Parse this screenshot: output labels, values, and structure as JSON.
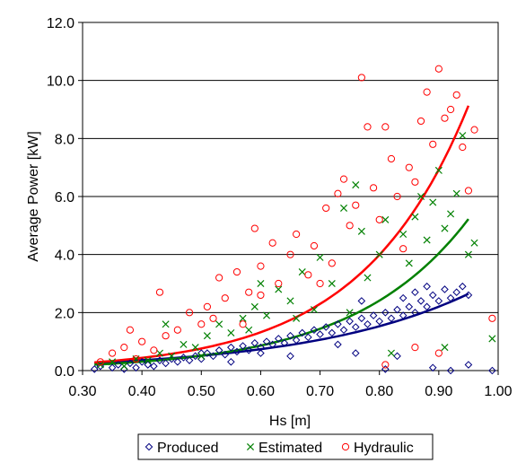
{
  "chart_data": {
    "type": "scatter",
    "title": "",
    "xlabel": "Hs [m]",
    "ylabel": "Average Power [kW]",
    "xlim": [
      0.3,
      1.0
    ],
    "ylim": [
      0.0,
      12.0
    ],
    "x_ticks": [
      "0.30",
      "0.40",
      "0.50",
      "0.60",
      "0.70",
      "0.80",
      "0.90",
      "1.00"
    ],
    "y_ticks": [
      "0.0",
      "2.0",
      "4.0",
      "6.0",
      "8.0",
      "10.0",
      "12.0"
    ],
    "grid": "horizontal",
    "legend_position": "bottom",
    "series": [
      {
        "name": "Produced",
        "marker": "diamond",
        "color": "#000080",
        "points": [
          [
            0.32,
            0.05
          ],
          [
            0.33,
            0.15
          ],
          [
            0.35,
            0.1
          ],
          [
            0.36,
            0.2
          ],
          [
            0.37,
            0.05
          ],
          [
            0.38,
            0.25
          ],
          [
            0.39,
            0.1
          ],
          [
            0.4,
            0.3
          ],
          [
            0.41,
            0.2
          ],
          [
            0.42,
            0.15
          ],
          [
            0.43,
            0.35
          ],
          [
            0.44,
            0.25
          ],
          [
            0.45,
            0.4
          ],
          [
            0.46,
            0.3
          ],
          [
            0.47,
            0.45
          ],
          [
            0.48,
            0.35
          ],
          [
            0.49,
            0.5
          ],
          [
            0.5,
            0.4
          ],
          [
            0.51,
            0.6
          ],
          [
            0.52,
            0.5
          ],
          [
            0.53,
            0.7
          ],
          [
            0.54,
            0.55
          ],
          [
            0.55,
            0.8
          ],
          [
            0.56,
            0.65
          ],
          [
            0.57,
            0.85
          ],
          [
            0.58,
            0.7
          ],
          [
            0.59,
            0.95
          ],
          [
            0.6,
            0.8
          ],
          [
            0.61,
            1.0
          ],
          [
            0.62,
            0.9
          ],
          [
            0.63,
            1.1
          ],
          [
            0.64,
            0.95
          ],
          [
            0.65,
            1.2
          ],
          [
            0.66,
            1.05
          ],
          [
            0.67,
            1.3
          ],
          [
            0.68,
            1.15
          ],
          [
            0.69,
            1.4
          ],
          [
            0.7,
            1.25
          ],
          [
            0.71,
            1.5
          ],
          [
            0.72,
            1.3
          ],
          [
            0.73,
            1.6
          ],
          [
            0.74,
            1.4
          ],
          [
            0.75,
            1.7
          ],
          [
            0.76,
            1.5
          ],
          [
            0.77,
            1.8
          ],
          [
            0.78,
            1.6
          ],
          [
            0.79,
            1.9
          ],
          [
            0.8,
            1.7
          ],
          [
            0.81,
            2.0
          ],
          [
            0.82,
            1.8
          ],
          [
            0.83,
            2.1
          ],
          [
            0.84,
            1.9
          ],
          [
            0.85,
            2.2
          ],
          [
            0.86,
            2.0
          ],
          [
            0.87,
            2.4
          ],
          [
            0.88,
            2.2
          ],
          [
            0.89,
            2.6
          ],
          [
            0.9,
            2.4
          ],
          [
            0.91,
            2.8
          ],
          [
            0.92,
            2.5
          ],
          [
            0.93,
            2.7
          ],
          [
            0.94,
            2.9
          ],
          [
            0.95,
            2.6
          ],
          [
            0.88,
            2.9
          ],
          [
            0.86,
            2.7
          ],
          [
            0.84,
            2.5
          ],
          [
            0.77,
            2.4
          ],
          [
            0.81,
            0.05
          ],
          [
            0.89,
            0.1
          ],
          [
            0.92,
            0.0
          ],
          [
            0.99,
            0.0
          ],
          [
            0.95,
            0.2
          ],
          [
            0.83,
            0.5
          ],
          [
            0.76,
            0.6
          ],
          [
            0.73,
            0.9
          ],
          [
            0.65,
            0.5
          ],
          [
            0.6,
            0.6
          ],
          [
            0.55,
            0.3
          ],
          [
            0.5,
            0.6
          ]
        ]
      },
      {
        "name": "Estimated",
        "marker": "x",
        "color": "#008000",
        "points": [
          [
            0.33,
            0.2
          ],
          [
            0.35,
            0.3
          ],
          [
            0.37,
            0.15
          ],
          [
            0.39,
            0.4
          ],
          [
            0.41,
            0.35
          ],
          [
            0.43,
            0.6
          ],
          [
            0.44,
            1.6
          ],
          [
            0.45,
            0.5
          ],
          [
            0.47,
            0.9
          ],
          [
            0.49,
            0.8
          ],
          [
            0.51,
            1.2
          ],
          [
            0.53,
            1.6
          ],
          [
            0.55,
            1.3
          ],
          [
            0.57,
            1.8
          ],
          [
            0.59,
            2.2
          ],
          [
            0.6,
            3.0
          ],
          [
            0.61,
            1.9
          ],
          [
            0.63,
            2.8
          ],
          [
            0.65,
            2.4
          ],
          [
            0.67,
            3.4
          ],
          [
            0.69,
            2.1
          ],
          [
            0.7,
            3.9
          ],
          [
            0.72,
            3.0
          ],
          [
            0.74,
            5.6
          ],
          [
            0.76,
            6.4
          ],
          [
            0.77,
            4.8
          ],
          [
            0.78,
            3.2
          ],
          [
            0.8,
            4.0
          ],
          [
            0.81,
            5.2
          ],
          [
            0.82,
            0.6
          ],
          [
            0.84,
            4.7
          ],
          [
            0.85,
            3.7
          ],
          [
            0.86,
            5.3
          ],
          [
            0.87,
            6.0
          ],
          [
            0.88,
            4.5
          ],
          [
            0.89,
            5.8
          ],
          [
            0.9,
            6.9
          ],
          [
            0.91,
            4.9
          ],
          [
            0.92,
            5.4
          ],
          [
            0.93,
            6.1
          ],
          [
            0.94,
            8.1
          ],
          [
            0.95,
            4.0
          ],
          [
            0.96,
            4.4
          ],
          [
            0.99,
            1.1
          ],
          [
            0.91,
            0.8
          ],
          [
            0.75,
            2.0
          ],
          [
            0.66,
            1.8
          ],
          [
            0.58,
            1.4
          ],
          [
            0.5,
            0.5
          ]
        ]
      },
      {
        "name": "Hydraulic",
        "marker": "circle",
        "color": "#ff0000",
        "points": [
          [
            0.33,
            0.3
          ],
          [
            0.35,
            0.6
          ],
          [
            0.37,
            0.8
          ],
          [
            0.38,
            1.4
          ],
          [
            0.39,
            0.4
          ],
          [
            0.4,
            1.0
          ],
          [
            0.42,
            0.7
          ],
          [
            0.43,
            2.7
          ],
          [
            0.44,
            1.2
          ],
          [
            0.46,
            1.4
          ],
          [
            0.48,
            2.0
          ],
          [
            0.5,
            1.6
          ],
          [
            0.51,
            2.2
          ],
          [
            0.53,
            3.2
          ],
          [
            0.54,
            2.5
          ],
          [
            0.56,
            3.4
          ],
          [
            0.58,
            2.7
          ],
          [
            0.59,
            4.9
          ],
          [
            0.6,
            3.6
          ],
          [
            0.62,
            4.4
          ],
          [
            0.63,
            3.0
          ],
          [
            0.65,
            4.0
          ],
          [
            0.66,
            4.7
          ],
          [
            0.68,
            3.3
          ],
          [
            0.69,
            4.3
          ],
          [
            0.71,
            5.6
          ],
          [
            0.72,
            3.7
          ],
          [
            0.73,
            6.1
          ],
          [
            0.74,
            6.6
          ],
          [
            0.75,
            5.0
          ],
          [
            0.76,
            5.7
          ],
          [
            0.77,
            10.1
          ],
          [
            0.78,
            8.4
          ],
          [
            0.79,
            6.3
          ],
          [
            0.8,
            5.2
          ],
          [
            0.81,
            8.4
          ],
          [
            0.82,
            7.3
          ],
          [
            0.83,
            6.0
          ],
          [
            0.84,
            4.2
          ],
          [
            0.85,
            7.0
          ],
          [
            0.86,
            6.5
          ],
          [
            0.87,
            8.6
          ],
          [
            0.88,
            9.6
          ],
          [
            0.89,
            7.8
          ],
          [
            0.9,
            10.4
          ],
          [
            0.91,
            8.7
          ],
          [
            0.92,
            9.0
          ],
          [
            0.93,
            9.5
          ],
          [
            0.94,
            7.7
          ],
          [
            0.95,
            6.2
          ],
          [
            0.96,
            8.3
          ],
          [
            0.99,
            1.8
          ],
          [
            0.9,
            0.6
          ],
          [
            0.81,
            0.2
          ],
          [
            0.86,
            0.8
          ],
          [
            0.7,
            3.0
          ],
          [
            0.6,
            2.6
          ],
          [
            0.57,
            1.6
          ],
          [
            0.52,
            1.8
          ]
        ]
      }
    ],
    "trendlines": [
      {
        "name": "Produced",
        "color": "#000080",
        "a": 0.0825,
        "b": 3.65,
        "x_from": 0.32,
        "x_to": 0.95
      },
      {
        "name": "Estimated",
        "color": "#008000",
        "a": 0.0392,
        "b": 5.15,
        "x_from": 0.32,
        "x_to": 0.95
      },
      {
        "name": "Hydraulic",
        "color": "#ff0000",
        "a": 0.0482,
        "b": 5.52,
        "x_from": 0.32,
        "x_to": 0.95
      }
    ]
  }
}
